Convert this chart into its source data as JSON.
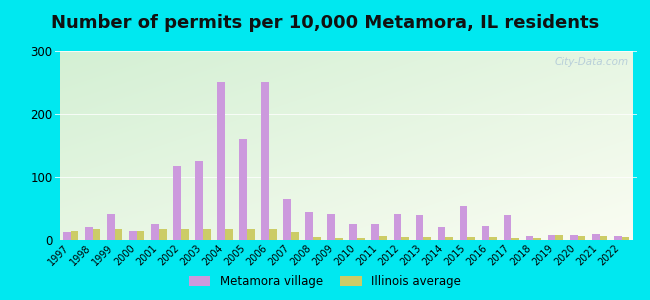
{
  "title": "Number of permits per 10,000 Metamora, IL residents",
  "years": [
    1997,
    1998,
    1999,
    2000,
    2001,
    2002,
    2003,
    2004,
    2005,
    2006,
    2007,
    2008,
    2009,
    2010,
    2011,
    2012,
    2013,
    2014,
    2015,
    2016,
    2017,
    2018,
    2019,
    2020,
    2021,
    2022
  ],
  "metamora": [
    12,
    20,
    42,
    15,
    25,
    118,
    126,
    250,
    160,
    250,
    65,
    45,
    42,
    25,
    25,
    42,
    40,
    20,
    54,
    22,
    40,
    6,
    8,
    8,
    10,
    6
  ],
  "illinois": [
    15,
    18,
    18,
    15,
    18,
    18,
    18,
    18,
    18,
    18,
    12,
    5,
    3,
    3,
    7,
    5,
    5,
    5,
    5,
    5,
    3,
    3,
    8,
    7,
    7,
    5
  ],
  "metamora_color": "#cc99dd",
  "illinois_color": "#cccc66",
  "ylim": [
    0,
    300
  ],
  "yticks": [
    0,
    100,
    200,
    300
  ],
  "outer_bg": "#00e8f0",
  "title_fontsize": 13,
  "legend_metamora": "Metamora village",
  "legend_illinois": "Illinois average",
  "watermark": "City-Data.com"
}
